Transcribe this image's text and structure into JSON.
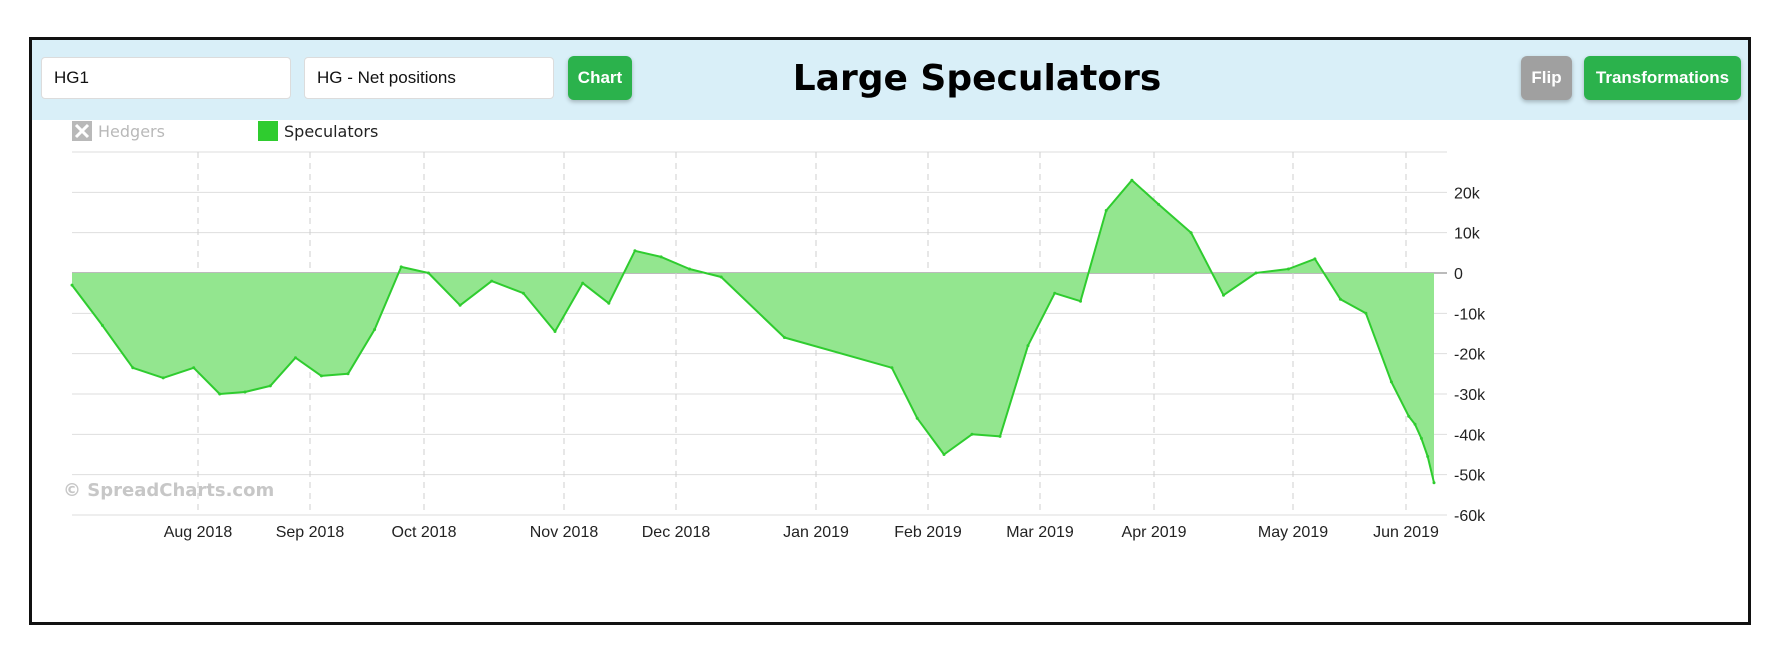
{
  "header": {
    "symbol_value": "HG1",
    "series_value": "HG - Net positions",
    "chart_button": "Chart",
    "title": "Large Speculators",
    "flip_button": "Flip",
    "transformations_button": "Transformations"
  },
  "legend": {
    "items": [
      {
        "label": "Hedgers",
        "state": "hidden",
        "color": "#b9b9b9"
      },
      {
        "label": "Speculators",
        "state": "visible",
        "color": "#2fcc2f"
      }
    ]
  },
  "watermark": "© SpreadCharts.com",
  "colors": {
    "line": "#2fcc2f",
    "fill": "#93e68f",
    "accent": "#2bb24c",
    "header_bg": "#d9eff8"
  },
  "chart_data": {
    "type": "area",
    "title": "Large Speculators",
    "series": [
      {
        "name": "Speculators",
        "points": [
          [
            "2018-07-03",
            -3000
          ],
          [
            "2018-07-10",
            -13000
          ],
          [
            "2018-07-17",
            -23500
          ],
          [
            "2018-07-24",
            -26000
          ],
          [
            "2018-07-31",
            -23500
          ],
          [
            "2018-08-07",
            -30000
          ],
          [
            "2018-08-14",
            -29500
          ],
          [
            "2018-08-21",
            -28000
          ],
          [
            "2018-08-28",
            -21000
          ],
          [
            "2018-09-04",
            -25500
          ],
          [
            "2018-09-11",
            -25000
          ],
          [
            "2018-09-18",
            -14000
          ],
          [
            "2018-09-25",
            1500
          ],
          [
            "2018-10-02",
            0
          ],
          [
            "2018-10-09",
            -8000
          ],
          [
            "2018-10-16",
            -2000
          ],
          [
            "2018-10-23",
            -5000
          ],
          [
            "2018-10-30",
            -14500
          ],
          [
            "2018-11-06",
            -2500
          ],
          [
            "2018-11-13",
            -7500
          ],
          [
            "2018-11-20",
            5500
          ],
          [
            "2018-11-27",
            4000
          ],
          [
            "2018-12-04",
            1000
          ],
          [
            "2018-12-11",
            -1000
          ],
          [
            "2018-12-25",
            -16000
          ],
          [
            "2019-01-22",
            -23500
          ],
          [
            "2019-01-29",
            -36000
          ],
          [
            "2019-02-05",
            -45000
          ],
          [
            "2019-02-12",
            -40000
          ],
          [
            "2019-02-19",
            -40500
          ],
          [
            "2019-02-26",
            -18000
          ],
          [
            "2019-03-05",
            -5000
          ],
          [
            "2019-03-12",
            -7000
          ],
          [
            "2019-03-19",
            15500
          ],
          [
            "2019-03-26",
            23000
          ],
          [
            "2019-04-02",
            17000
          ],
          [
            "2019-04-09",
            10000
          ],
          [
            "2019-04-16",
            -5500
          ],
          [
            "2019-04-23",
            0
          ],
          [
            "2019-04-30",
            1000
          ],
          [
            "2019-05-07",
            3500
          ],
          [
            "2019-05-14",
            -6500
          ],
          [
            "2019-05-21",
            -10000
          ],
          [
            "2019-05-28",
            -27000
          ],
          [
            "2019-06-04",
            -35500
          ],
          [
            "2019-06-11",
            -37500
          ],
          [
            "2019-06-18",
            -41000
          ],
          [
            "2019-06-25",
            -45500
          ],
          [
            "2019-07-02",
            -52000
          ]
        ]
      }
    ],
    "x_ticks": [
      {
        "label": "Aug 2018",
        "date": "2018-08-01"
      },
      {
        "label": "Sep 2018",
        "date": "2018-09-01"
      },
      {
        "label": "Oct 2018",
        "date": "2018-10-01"
      },
      {
        "label": "Nov 2018",
        "date": "2018-11-01"
      },
      {
        "label": "Dec 2018",
        "date": "2018-12-01"
      },
      {
        "label": "Jan 2019",
        "date": "2019-01-01"
      },
      {
        "label": "Feb 2019",
        "date": "2019-02-01"
      },
      {
        "label": "Mar 2019",
        "date": "2019-03-01"
      },
      {
        "label": "Apr 2019",
        "date": "2019-04-01"
      },
      {
        "label": "May 2019",
        "date": "2019-05-01"
      },
      {
        "label": "Jun 2019",
        "date": "2019-06-01"
      }
    ],
    "y_ticks": [
      {
        "label": "20k",
        "value": 20000
      },
      {
        "label": "10k",
        "value": 10000
      },
      {
        "label": "0",
        "value": 0
      },
      {
        "label": "-10k",
        "value": -10000
      },
      {
        "label": "-20k",
        "value": -20000
      },
      {
        "label": "-30k",
        "value": -30000
      },
      {
        "label": "-40k",
        "value": -40000
      },
      {
        "label": "-50k",
        "value": -50000
      },
      {
        "label": "-60k",
        "value": -60000
      }
    ],
    "ylim": [
      -60000,
      30000
    ],
    "y_axis_side": "right",
    "grid": true,
    "legend_position": "top-left"
  }
}
